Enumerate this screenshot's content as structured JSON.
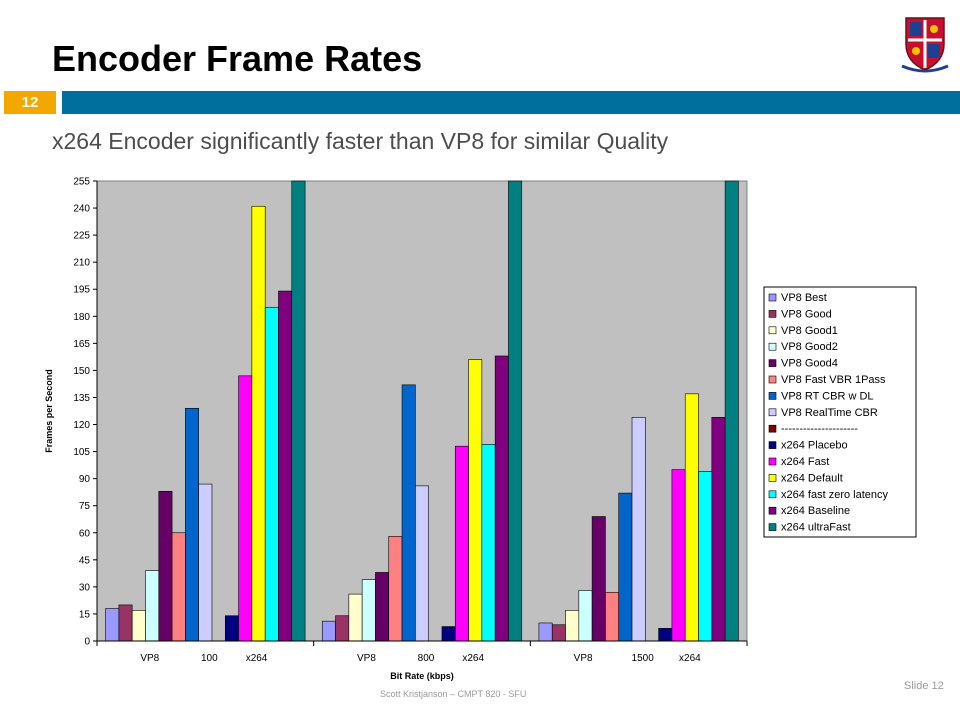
{
  "slide": {
    "title": "Encoder Frame Rates",
    "number": "12",
    "subtitle": "x264 Encoder significantly faster than VP8 for similar Quality",
    "footer": "Scott Kristjanson – CMPT 820 - SFU",
    "slide_label": "Slide 12"
  },
  "colors": {
    "accent_bar": "#006f9e",
    "number_box": "#f2a800",
    "plot_background": "#c0c0c0"
  },
  "chart_data": {
    "type": "bar",
    "xlabel": "Bit Rate (kbps)",
    "ylabel": "Frames per Second",
    "ylim": [
      0,
      255
    ],
    "yticks": [
      0,
      15,
      30,
      45,
      60,
      75,
      90,
      105,
      120,
      135,
      150,
      165,
      180,
      195,
      210,
      225,
      240,
      255
    ],
    "grid": false,
    "legend_position": "right",
    "categories": [
      "100",
      "800",
      "1500"
    ],
    "category_sublabels": [
      "VP8",
      "x264"
    ],
    "series": [
      {
        "name": "VP8 Best",
        "color": "#9999ff",
        "values": [
          18,
          11,
          10
        ]
      },
      {
        "name": "VP8 Good",
        "color": "#993366",
        "values": [
          20,
          14,
          9
        ]
      },
      {
        "name": "VP8 Good1",
        "color": "#ffffcc",
        "values": [
          17,
          26,
          17
        ]
      },
      {
        "name": "VP8 Good2",
        "color": "#ccffff",
        "values": [
          39,
          34,
          28
        ]
      },
      {
        "name": "VP8 Good4",
        "color": "#660066",
        "values": [
          83,
          38,
          69
        ]
      },
      {
        "name": "VP8 Fast VBR 1Pass",
        "color": "#ff8080",
        "values": [
          60,
          58,
          27
        ]
      },
      {
        "name": "VP8 RT CBR w DL",
        "color": "#0066cc",
        "values": [
          129,
          142,
          82
        ]
      },
      {
        "name": "VP8 RealTime CBR",
        "color": "#ccccff",
        "values": [
          87,
          86,
          124
        ]
      },
      {
        "name": "---------------------",
        "color": "#800000",
        "values": [
          null,
          null,
          null
        ]
      },
      {
        "name": "x264 Placebo",
        "color": "#000080",
        "values": [
          14,
          8,
          7
        ]
      },
      {
        "name": "x264 Fast",
        "color": "#ff00ff",
        "values": [
          147,
          108,
          95
        ]
      },
      {
        "name": "x264 Default",
        "color": "#ffff00",
        "values": [
          241,
          156,
          137
        ]
      },
      {
        "name": "x264 fast zero latency",
        "color": "#00ffff",
        "values": [
          185,
          109,
          94
        ]
      },
      {
        "name": "x264 Baseline",
        "color": "#800080",
        "values": [
          194,
          158,
          124
        ]
      },
      {
        "name": "x264 ultraFast",
        "color": "#008080",
        "values": [
          255,
          255,
          255
        ]
      }
    ]
  }
}
